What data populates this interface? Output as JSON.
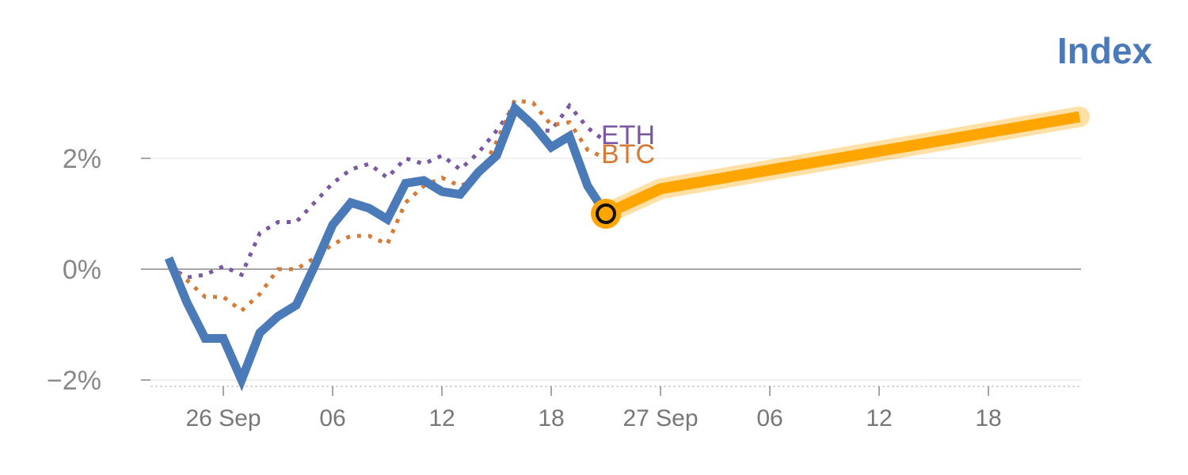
{
  "chart_data": {
    "type": "line",
    "title": "Index",
    "colors": {
      "index": "#4a7ab8",
      "btc": "#d67a34",
      "eth": "#7b58a3",
      "forecast": "#ffa500"
    },
    "ylim": [
      -2.1,
      3.2
    ],
    "yticks": [
      {
        "value": -2,
        "label": "−2%"
      },
      {
        "value": 0,
        "label": "0%"
      },
      {
        "value": 2,
        "label": "2%"
      }
    ],
    "xticks": [
      {
        "t": 3,
        "label": "26 Sep"
      },
      {
        "t": 9,
        "label": "06"
      },
      {
        "t": 15,
        "label": "12"
      },
      {
        "t": 21,
        "label": "18"
      },
      {
        "t": 27,
        "label": "27 Sep"
      },
      {
        "t": 33,
        "label": "06"
      },
      {
        "t": 39,
        "label": "12"
      },
      {
        "t": 45,
        "label": "18"
      }
    ],
    "xlim": [
      -1,
      50.3
    ],
    "series": [
      {
        "name": "Index",
        "style": "solid",
        "values": [
          [
            0,
            0.2
          ],
          [
            1,
            -0.6
          ],
          [
            2,
            -1.25
          ],
          [
            3,
            -1.25
          ],
          [
            4,
            -2.0
          ],
          [
            5,
            -1.15
          ],
          [
            6,
            -0.85
          ],
          [
            7,
            -0.65
          ],
          [
            8,
            0.05
          ],
          [
            9,
            0.8
          ],
          [
            10,
            1.2
          ],
          [
            11,
            1.1
          ],
          [
            12,
            0.9
          ],
          [
            13,
            1.55
          ],
          [
            14,
            1.6
          ],
          [
            15,
            1.4
          ],
          [
            16,
            1.35
          ],
          [
            17,
            1.75
          ],
          [
            18,
            2.05
          ],
          [
            19,
            2.9
          ],
          [
            20,
            2.6
          ],
          [
            21,
            2.2
          ],
          [
            22,
            2.4
          ],
          [
            23,
            1.5
          ],
          [
            24,
            1.0
          ]
        ]
      },
      {
        "name": "BTC",
        "style": "dotted",
        "values": [
          [
            0,
            0.05
          ],
          [
            1,
            -0.2
          ],
          [
            2,
            -0.5
          ],
          [
            3,
            -0.5
          ],
          [
            4,
            -0.75
          ],
          [
            5,
            -0.45
          ],
          [
            6,
            0.0
          ],
          [
            7,
            0.0
          ],
          [
            8,
            0.2
          ],
          [
            9,
            0.45
          ],
          [
            10,
            0.6
          ],
          [
            11,
            0.6
          ],
          [
            12,
            0.45
          ],
          [
            13,
            1.2
          ],
          [
            14,
            1.5
          ],
          [
            15,
            1.65
          ],
          [
            16,
            1.5
          ],
          [
            17,
            1.65
          ],
          [
            18,
            2.3
          ],
          [
            19,
            3.05
          ],
          [
            20,
            3.0
          ],
          [
            21,
            2.6
          ],
          [
            22,
            2.65
          ],
          [
            23,
            2.15
          ],
          [
            24,
            2.0
          ]
        ]
      },
      {
        "name": "ETH",
        "style": "dotted",
        "values": [
          [
            0,
            0.05
          ],
          [
            1,
            -0.15
          ],
          [
            2,
            -0.1
          ],
          [
            3,
            0.05
          ],
          [
            4,
            -0.1
          ],
          [
            5,
            0.65
          ],
          [
            6,
            0.85
          ],
          [
            7,
            0.85
          ],
          [
            8,
            1.2
          ],
          [
            9,
            1.55
          ],
          [
            10,
            1.8
          ],
          [
            11,
            1.9
          ],
          [
            12,
            1.65
          ],
          [
            13,
            2.0
          ],
          [
            14,
            1.9
          ],
          [
            15,
            2.05
          ],
          [
            16,
            1.8
          ],
          [
            17,
            2.1
          ],
          [
            18,
            2.5
          ],
          [
            19,
            2.95
          ],
          [
            20,
            2.5
          ],
          [
            21,
            2.5
          ],
          [
            22,
            2.95
          ],
          [
            23,
            2.55
          ],
          [
            24,
            2.3
          ]
        ]
      },
      {
        "name": "forecast",
        "style": "band",
        "values": [
          [
            24,
            1.0
          ],
          [
            27,
            1.45
          ],
          [
            50,
            2.75
          ]
        ]
      }
    ],
    "annotations": [
      {
        "text": "ETH",
        "series": "ETH"
      },
      {
        "text": "BTC",
        "series": "BTC"
      }
    ]
  }
}
